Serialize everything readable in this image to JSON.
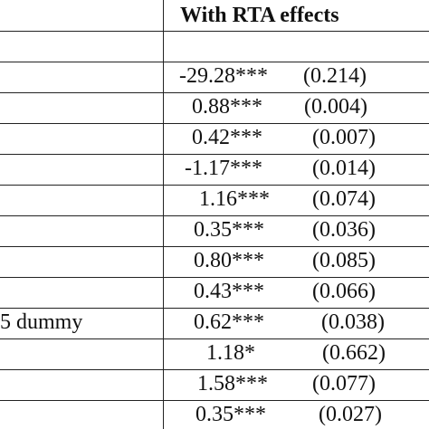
{
  "header": {
    "column_title": "With RTA effects"
  },
  "rows": [
    {
      "label": "",
      "coef": "",
      "se": ""
    },
    {
      "label": "",
      "coef": "-29.28***",
      "se": "(0.214)"
    },
    {
      "label": "",
      "coef": "0.88***",
      "se": "(0.004)"
    },
    {
      "label": "",
      "coef": "0.42***",
      "se": "(0.007)"
    },
    {
      "label": "",
      "coef": "-1.17***",
      "se": "(0.014)"
    },
    {
      "label": "",
      "coef": "1.16***",
      "se": "(0.074)"
    },
    {
      "label": "",
      "coef": "0.35***",
      "se": "(0.036)"
    },
    {
      "label": "",
      "coef": "0.80***",
      "se": "(0.085)"
    },
    {
      "label": "",
      "coef": "0.43***",
      "se": "(0.066)"
    },
    {
      "label": "5 dummy",
      "coef": "0.62***",
      "se": "(0.038)"
    },
    {
      "label": "",
      "coef": "1.18*",
      "se": "(0.662)"
    },
    {
      "label": "",
      "coef": "1.58***",
      "se": "(0.077)"
    },
    {
      "label": "",
      "coef": "0.35***",
      "se": "(0.027)"
    }
  ]
}
